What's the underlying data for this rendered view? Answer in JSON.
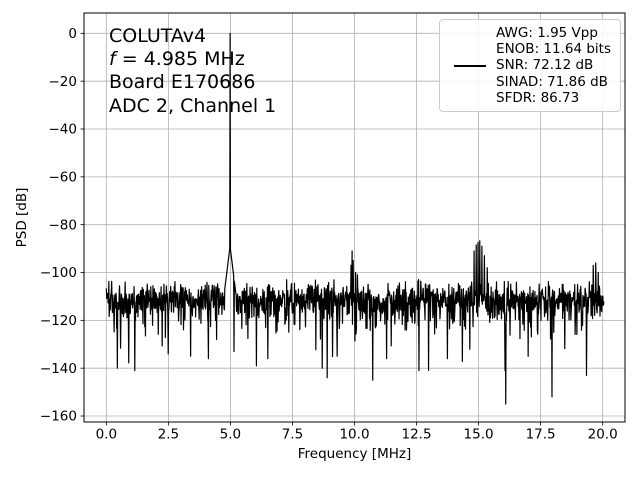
{
  "figure": {
    "background": "#ffffff"
  },
  "chart_data": {
    "type": "line",
    "title": "",
    "xlabel": "Frequency [MHz]",
    "ylabel": "PSD [dB]",
    "xlim": [
      -0.9,
      20.9
    ],
    "ylim": [
      -162.5,
      8.5
    ],
    "grid": true,
    "grid_color": "#b0b0b0",
    "x_ticks": [
      0,
      2.5,
      5,
      7.5,
      10,
      12.5,
      15,
      17.5,
      20
    ],
    "x_tick_labels": [
      "0.0",
      "2.5",
      "5.0",
      "7.5",
      "10.0",
      "12.5",
      "15.0",
      "17.5",
      "20.0"
    ],
    "y_ticks": [
      0,
      -20,
      -40,
      -60,
      -80,
      -100,
      -120,
      -140,
      -160
    ],
    "y_tick_labels": [
      "0",
      "−20",
      "−40",
      "−60",
      "−80",
      "−100",
      "−120",
      "−140",
      "−160"
    ],
    "legend_position": "upper right",
    "series": [
      {
        "name": "SNR: 72.12 dB",
        "color": "#000000",
        "linewidth": 1.2
      }
    ],
    "signal": {
      "carrier_freq_mhz": 4.985,
      "carrier_level_db": 0,
      "noise_floor_mean_db": -110.5,
      "noise_spread_db": 5,
      "n_points": 1400,
      "f_start_mhz": 0,
      "f_end_mhz": 20.05,
      "random_seed": 20230517,
      "skirt": {
        "halfwidth_mhz": 0.22,
        "peak_db": -89
      },
      "spurs": [
        [
          9.86,
          -97
        ],
        [
          9.9,
          -91
        ],
        [
          9.94,
          -95
        ],
        [
          10.04,
          -100
        ],
        [
          10.12,
          -101
        ],
        [
          14.82,
          -91
        ],
        [
          14.9,
          -88.5
        ],
        [
          14.97,
          -87.5
        ],
        [
          15.05,
          -86.7
        ],
        [
          15.13,
          -89
        ],
        [
          15.23,
          -93
        ],
        [
          15.35,
          -98
        ],
        [
          19.62,
          -97
        ],
        [
          19.72,
          -96
        ],
        [
          19.82,
          -100
        ]
      ],
      "notches": [
        [
          0.45,
          -140
        ],
        [
          1.15,
          -141
        ],
        [
          2.5,
          -134
        ],
        [
          3.4,
          -135
        ],
        [
          4.12,
          -136
        ],
        [
          5.15,
          -133
        ],
        [
          6.05,
          -139
        ],
        [
          6.5,
          -136
        ],
        [
          8.7,
          -140
        ],
        [
          8.9,
          -144
        ],
        [
          9.3,
          -135
        ],
        [
          10.73,
          -145
        ],
        [
          11.3,
          -136
        ],
        [
          12.6,
          -141
        ],
        [
          13.75,
          -136
        ],
        [
          16.1,
          -155
        ],
        [
          17.0,
          -135
        ],
        [
          17.96,
          -152
        ],
        [
          19.35,
          -143
        ]
      ]
    }
  },
  "annotation": {
    "lines": [
      "COLUTAv4",
      "f = 4.985 MHz",
      "Board E170686",
      "ADC 2, Channel 1"
    ],
    "math_italic_line": 1
  },
  "legend": {
    "lines": [
      "AWG: 1.95 Vpp",
      "ENOB: 11.64 bits",
      "SNR: 72.12 dB",
      "SINAD: 71.86 dB",
      "SFDR: 86.73"
    ],
    "handle_line_index": 2,
    "handle_color": "#000000",
    "border_color": "#cccccc",
    "background": "#ffffff"
  }
}
